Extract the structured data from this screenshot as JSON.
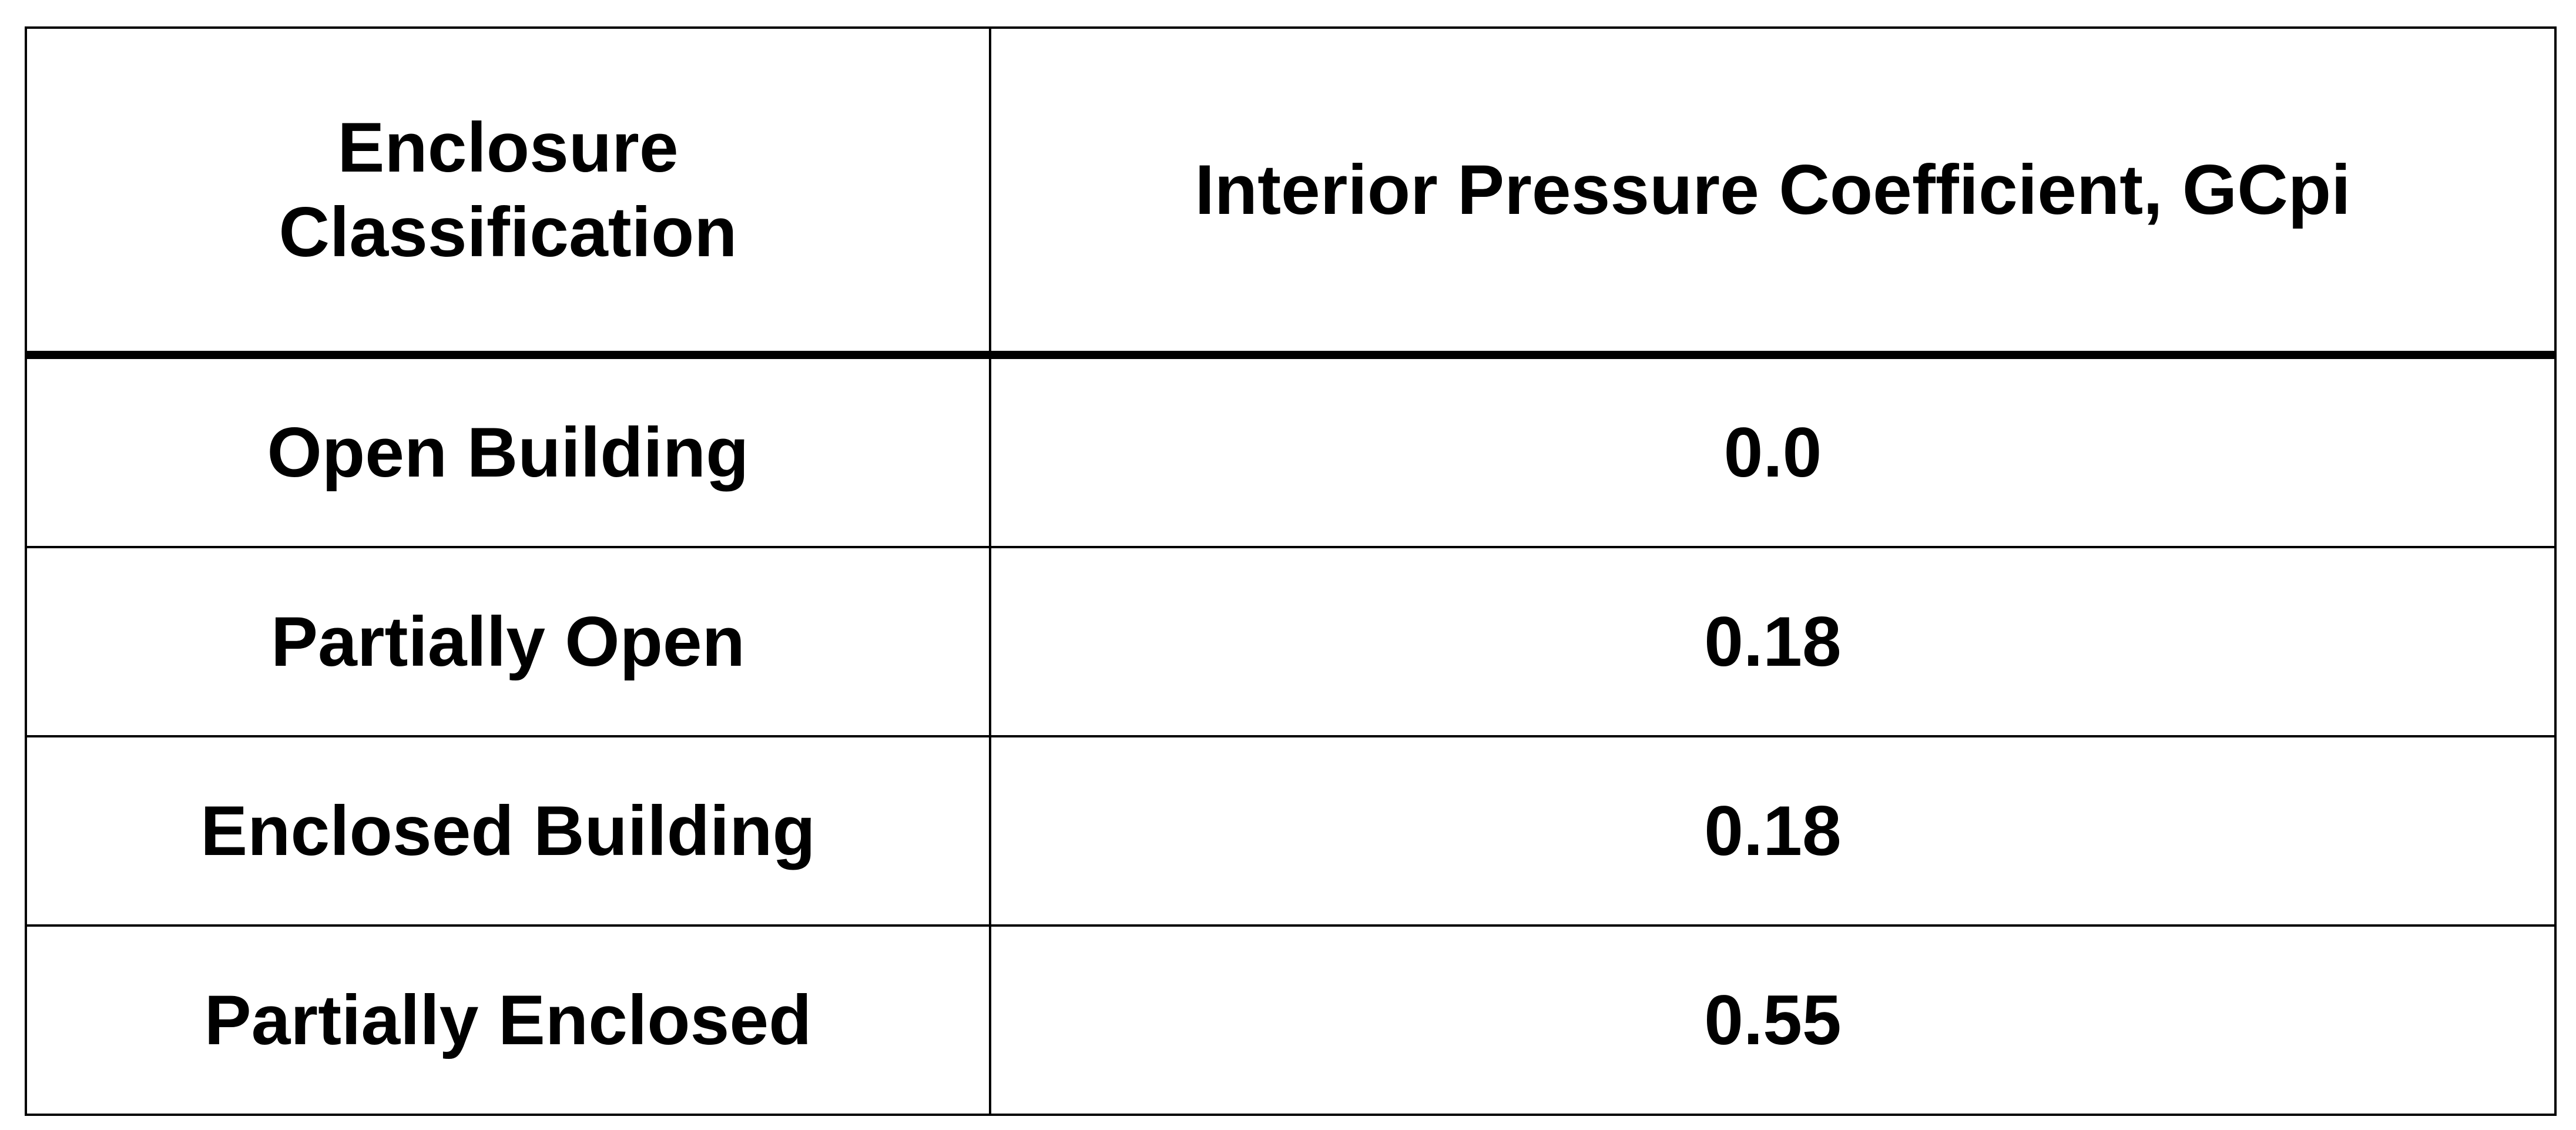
{
  "table": {
    "header": [
      "Enclosure Classification",
      "Interior Pressure Coefficient, GCpi"
    ],
    "rows": [
      [
        "Open Building",
        "0.0"
      ],
      [
        "Partially Open",
        "0.18"
      ],
      [
        "Enclosed Building",
        "0.18"
      ],
      [
        "Partially Enclosed",
        "0.55"
      ]
    ]
  }
}
